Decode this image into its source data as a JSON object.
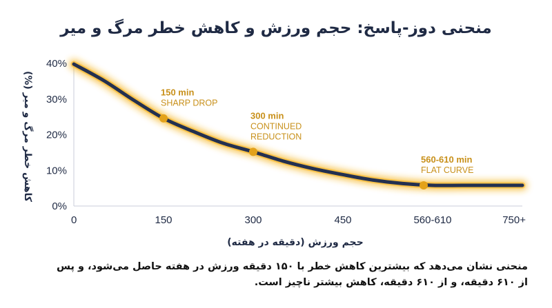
{
  "chart_data": {
    "type": "line",
    "title": "منحنی دوز-پاسخ: حجم ورزش و کاهش خطر مرگ و میر",
    "xlabel": "حجم ورزش (دقیقه در هفته)",
    "ylabel": "کاهش خطر مرگ و میر (%)",
    "x_ticks": [
      {
        "value": 0,
        "label": "0"
      },
      {
        "value": 150,
        "label": "150"
      },
      {
        "value": 300,
        "label": "300"
      },
      {
        "value": 450,
        "label": "450"
      },
      {
        "value": 600,
        "label": "560-610"
      },
      {
        "value": 750,
        "label": "750+"
      }
    ],
    "y_ticks": [
      {
        "value": 0,
        "label": "0%"
      },
      {
        "value": 10,
        "label": "10%"
      },
      {
        "value": 20,
        "label": "20%"
      },
      {
        "value": 30,
        "label": "30%"
      },
      {
        "value": 40,
        "label": "40%"
      }
    ],
    "xlim": [
      0,
      750
    ],
    "ylim": [
      0,
      40
    ],
    "grid": false,
    "series": [
      {
        "x": [
          0,
          50,
          100,
          150,
          200,
          250,
          300,
          350,
          400,
          450,
          500,
          550,
          600,
          650,
          700,
          750
        ],
        "y": [
          39.8,
          35.2,
          29.7,
          24.6,
          20.9,
          17.6,
          15.2,
          12.6,
          10.5,
          8.8,
          7.3,
          6.3,
          5.8,
          5.8,
          5.8,
          5.8
        ]
      }
    ],
    "line_color": "#233050",
    "glow_color": "#f5b31f",
    "marker_color": "#e3a21a",
    "annotations": [
      {
        "x": 150,
        "y": 24.6,
        "line1": "150 min",
        "line2": "SHARP DROP"
      },
      {
        "x": 300,
        "y": 15.2,
        "line1": "300 min",
        "line2": "CONTINUED",
        "line3": "REDUCTION"
      },
      {
        "x": 585,
        "y": 5.8,
        "line1": "560-610 min",
        "line2": "FLAT CURVE"
      }
    ]
  },
  "caption": {
    "text": "منحنی نشان می‌دهد که بیشترین کاهش خطر با ۱۵۰ دقیقه ورزش در هفته حاصل می‌شود، و پس از ۶۱۰ دقیقه، و از ۶۱۰ دقیقه، کاهش بیشتر ناچیز است."
  }
}
